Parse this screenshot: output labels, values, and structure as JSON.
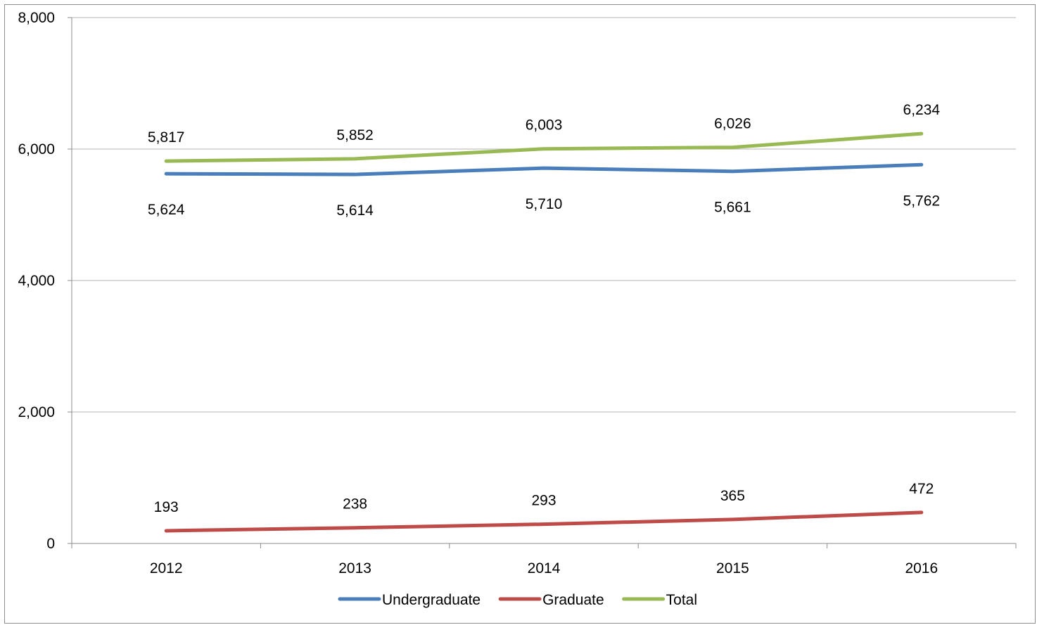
{
  "chart_data": {
    "type": "line",
    "title": "",
    "xlabel": "",
    "ylabel": "",
    "categories": [
      "2012",
      "2013",
      "2014",
      "2015",
      "2016"
    ],
    "ylim": [
      0,
      8000
    ],
    "yticks": [
      0,
      2000,
      4000,
      6000,
      8000
    ],
    "ytick_labels": [
      "0",
      "2,000",
      "4,000",
      "6,000",
      "8,000"
    ],
    "grid": true,
    "legend_position": "bottom",
    "series": [
      {
        "name": "Undergraduate",
        "color": "#4a7ebb",
        "label_position": "below",
        "values": [
          5624,
          5614,
          5710,
          5661,
          5762
        ],
        "labels": [
          "5,624",
          "5,614",
          "5,710",
          "5,661",
          "5,762"
        ]
      },
      {
        "name": "Graduate",
        "color": "#be4b48",
        "label_position": "above",
        "values": [
          193,
          238,
          293,
          365,
          472
        ],
        "labels": [
          "193",
          "238",
          "293",
          "365",
          "472"
        ]
      },
      {
        "name": "Total",
        "color": "#98b954",
        "label_position": "above",
        "values": [
          5817,
          5852,
          6003,
          6026,
          6234
        ],
        "labels": [
          "5,817",
          "5,852",
          "6,003",
          "6,026",
          "6,234"
        ]
      }
    ]
  }
}
